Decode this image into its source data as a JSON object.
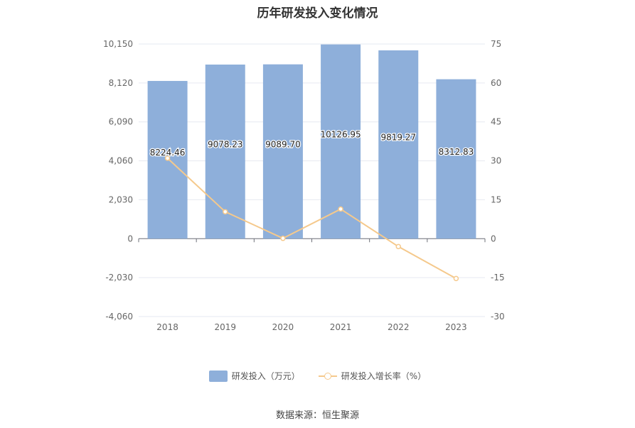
{
  "chart_data": {
    "title": "历年研发投入变化情况",
    "type": "bar",
    "categories": [
      "2018",
      "2019",
      "2020",
      "2021",
      "2022",
      "2023"
    ],
    "series": [
      {
        "name": "研发投入（万元）",
        "type": "bar",
        "axis": "left",
        "values": [
          8224.46,
          9078.23,
          9089.7,
          10126.95,
          9819.27,
          8312.83
        ],
        "color": "#8eafda"
      },
      {
        "name": "研发投入增长率（%）",
        "type": "line",
        "axis": "right",
        "values": [
          31.0,
          10.38,
          0.13,
          11.41,
          -3.04,
          -15.34
        ],
        "color": "#f5c98c"
      }
    ],
    "y_left": {
      "ticks": [
        "10,150",
        "8,120",
        "6,090",
        "4,060",
        "2,030",
        "0",
        "-2,030",
        "-4,060"
      ],
      "ylim": [
        -4060,
        10150
      ]
    },
    "y_right": {
      "ticks": [
        "75",
        "60",
        "45",
        "30",
        "15",
        "0",
        "-15",
        "-30"
      ],
      "ylim": [
        -30,
        75
      ]
    },
    "bar_labels": [
      "8224.46",
      "9078.23",
      "9089.70",
      "10126.95",
      "9819.27",
      "8312.83"
    ],
    "legend": [
      "研发投入（万元）",
      "研发投入增长率（%）"
    ],
    "grid": true,
    "legend_position": "bottom"
  },
  "source": "数据来源：恒生聚源"
}
